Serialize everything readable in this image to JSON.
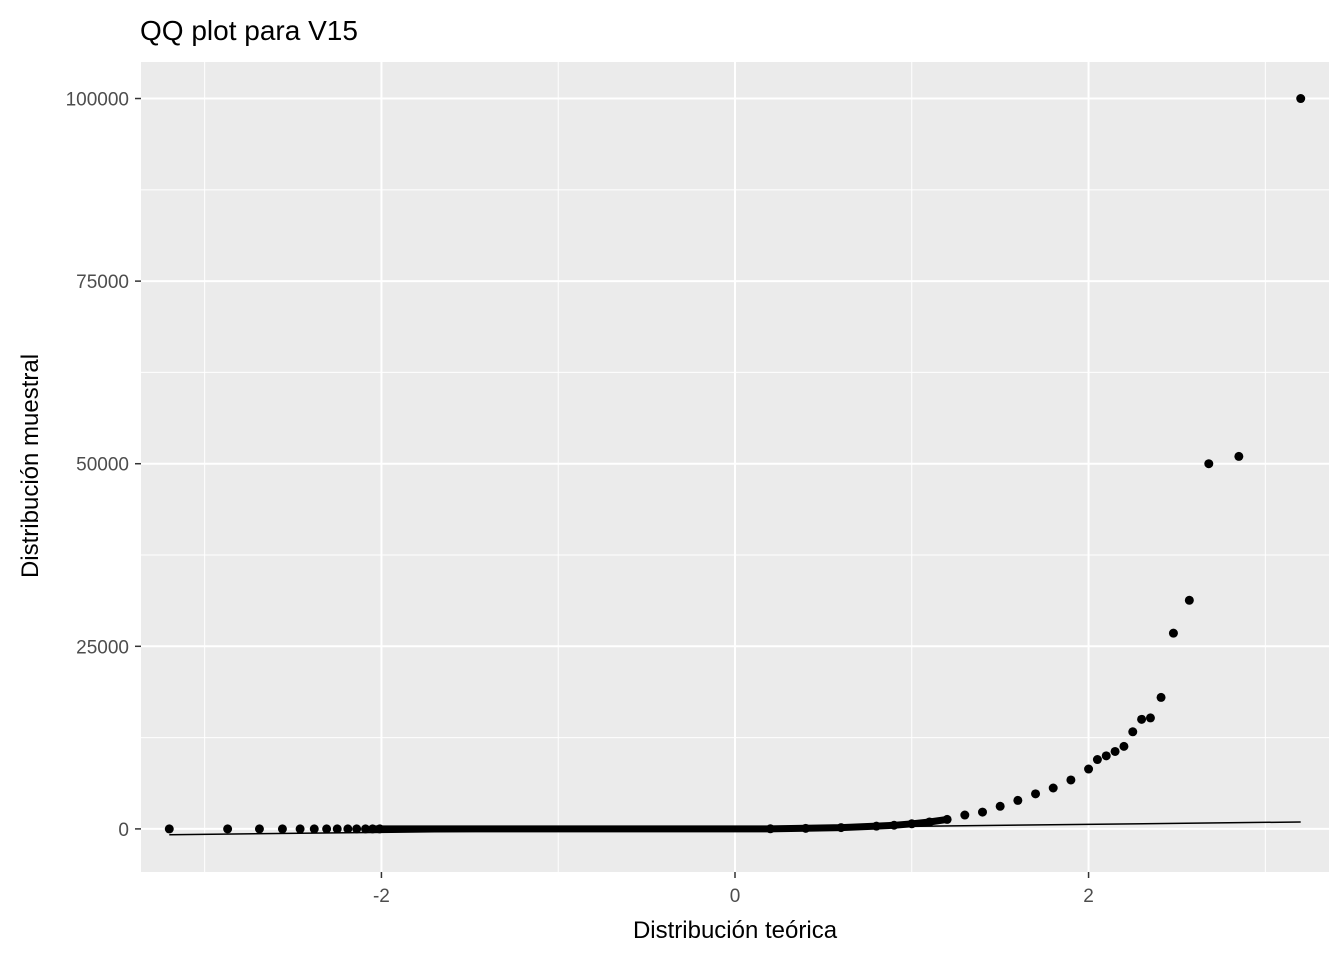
{
  "chart_data": {
    "type": "scatter",
    "title": "QQ plot para V15",
    "xlabel": "Distribución teórica",
    "ylabel": "Distribución muestral",
    "xlim": [
      -3.36,
      3.36
    ],
    "ylim": [
      -5900,
      105000
    ],
    "x_ticks": [
      -2,
      0,
      2
    ],
    "x_tick_labels": [
      "-2",
      "0",
      "2"
    ],
    "y_ticks": [
      0,
      25000,
      50000,
      75000,
      100000
    ],
    "y_tick_labels": [
      "0",
      "25000",
      "50000",
      "75000",
      "100000"
    ],
    "grid": true,
    "legend": "none",
    "colors": {
      "panel": "#ebebeb",
      "grid": "#ffffff",
      "points": "#000000",
      "line": "#000000"
    },
    "reference_line": {
      "x": [
        -3.2,
        3.2
      ],
      "y": [
        -800,
        950
      ]
    },
    "series": [
      {
        "points": [
          [
            -3.2,
            0
          ],
          [
            -2.87,
            0
          ],
          [
            -2.69,
            0
          ],
          [
            -2.56,
            0
          ],
          [
            -2.46,
            0
          ],
          [
            -2.38,
            0
          ],
          [
            -2.31,
            0
          ],
          [
            -2.25,
            0
          ],
          [
            -2.19,
            0
          ],
          [
            -2.14,
            0
          ],
          [
            -2.09,
            0
          ],
          [
            -2.05,
            0
          ],
          [
            -2.01,
            0
          ],
          [
            0.2,
            20
          ],
          [
            0.4,
            80
          ],
          [
            0.6,
            180
          ],
          [
            0.8,
            380
          ],
          [
            0.9,
            500
          ],
          [
            1.0,
            700
          ],
          [
            1.1,
            950
          ],
          [
            1.2,
            1300
          ],
          [
            1.3,
            1900
          ],
          [
            1.4,
            2300
          ],
          [
            1.5,
            3100
          ],
          [
            1.6,
            3900
          ],
          [
            1.7,
            4800
          ],
          [
            1.8,
            5600
          ],
          [
            1.9,
            6700
          ],
          [
            2.0,
            8200
          ],
          [
            2.05,
            9500
          ],
          [
            2.1,
            10000
          ],
          [
            2.15,
            10600
          ],
          [
            2.2,
            11300
          ],
          [
            2.25,
            13300
          ],
          [
            2.3,
            15000
          ],
          [
            2.35,
            15200
          ],
          [
            2.41,
            18000
          ],
          [
            2.48,
            26800
          ],
          [
            2.57,
            31300
          ],
          [
            2.68,
            50000
          ],
          [
            2.85,
            51000
          ],
          [
            3.2,
            100000
          ]
        ]
      }
    ]
  }
}
